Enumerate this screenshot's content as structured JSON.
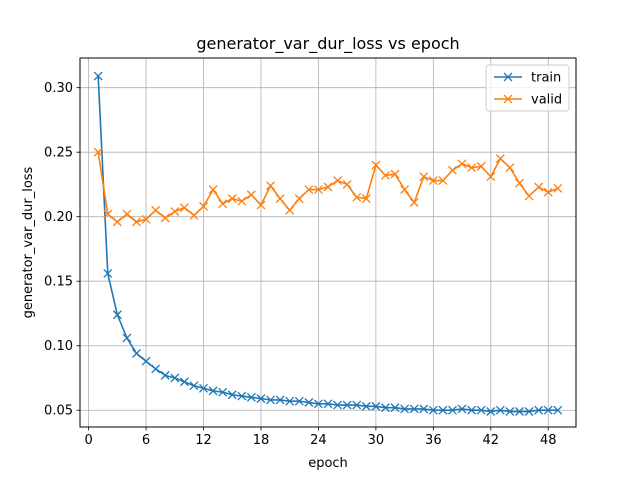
{
  "chart_data": {
    "type": "line",
    "title": "generator_var_dur_loss vs epoch",
    "xlabel": "epoch",
    "ylabel": "generator_var_dur_loss",
    "xlim": [
      -0.9,
      50.9
    ],
    "ylim": [
      0.037,
      0.323
    ],
    "x_ticks": [
      0,
      6,
      12,
      18,
      24,
      30,
      36,
      42,
      48
    ],
    "y_ticks": [
      0.05,
      0.1,
      0.15,
      0.2,
      0.25,
      0.3
    ],
    "y_tick_labels": [
      "0.05",
      "0.10",
      "0.15",
      "0.20",
      "0.25",
      "0.30"
    ],
    "grid": true,
    "legend_position": "top-right",
    "x": [
      1,
      2,
      3,
      4,
      5,
      6,
      7,
      8,
      9,
      10,
      11,
      12,
      13,
      14,
      15,
      16,
      17,
      18,
      19,
      20,
      21,
      22,
      23,
      24,
      25,
      26,
      27,
      28,
      29,
      30,
      31,
      32,
      33,
      34,
      35,
      36,
      37,
      38,
      39,
      40,
      41,
      42,
      43,
      44,
      45,
      46,
      47,
      48,
      49
    ],
    "series": [
      {
        "name": "train",
        "color": "#1f77b4",
        "marker": "x",
        "values": [
          0.309,
          0.156,
          0.124,
          0.106,
          0.094,
          0.088,
          0.082,
          0.077,
          0.075,
          0.072,
          0.069,
          0.067,
          0.065,
          0.064,
          0.062,
          0.061,
          0.06,
          0.059,
          0.058,
          0.058,
          0.057,
          0.057,
          0.056,
          0.055,
          0.055,
          0.054,
          0.054,
          0.054,
          0.053,
          0.053,
          0.052,
          0.052,
          0.051,
          0.051,
          0.051,
          0.05,
          0.05,
          0.05,
          0.051,
          0.05,
          0.05,
          0.049,
          0.05,
          0.049,
          0.049,
          0.049,
          0.05,
          0.05,
          0.05
        ]
      },
      {
        "name": "valid",
        "color": "#ff7f0e",
        "marker": "x",
        "values": [
          0.25,
          0.202,
          0.196,
          0.202,
          0.196,
          0.198,
          0.205,
          0.199,
          0.204,
          0.207,
          0.201,
          0.208,
          0.221,
          0.21,
          0.214,
          0.212,
          0.217,
          0.209,
          0.224,
          0.214,
          0.205,
          0.214,
          0.221,
          0.221,
          0.223,
          0.228,
          0.225,
          0.215,
          0.214,
          0.24,
          0.232,
          0.233,
          0.221,
          0.211,
          0.231,
          0.228,
          0.228,
          0.236,
          0.241,
          0.238,
          0.239,
          0.231,
          0.245,
          0.238,
          0.226,
          0.216,
          0.223,
          0.219,
          0.222
        ]
      }
    ]
  }
}
